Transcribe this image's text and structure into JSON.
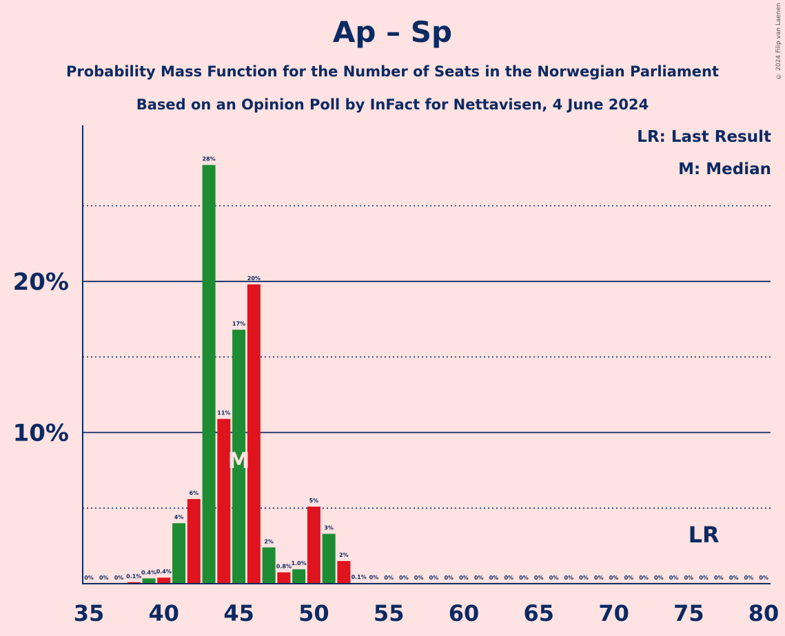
{
  "title": "Ap – Sp",
  "subtitle1": "Probability Mass Function for the Number of Seats in the Norwegian Parliament",
  "subtitle2": "Based on an Opinion Poll by InFact for Nettavisen, 4 June 2024",
  "copyright": "© 2024 Filip van Laenen",
  "legend": {
    "lr": "LR: Last Result",
    "m": "M: Median"
  },
  "colors": {
    "green": "#1E8C32",
    "red": "#E0141E",
    "text": "#0C2A62",
    "background": "#FFE2E2"
  },
  "chart_data": {
    "type": "bar",
    "xlim": [
      35,
      80
    ],
    "ylim": [
      0,
      30
    ],
    "x_ticks": [
      "35",
      "40",
      "45",
      "50",
      "55",
      "60",
      "65",
      "70",
      "75",
      "80"
    ],
    "y_ticks": [
      "10%",
      "20%"
    ],
    "grid": {
      "solid": [
        10,
        20,
        30
      ],
      "dotted": [
        5,
        15,
        25
      ]
    },
    "median": 45,
    "median_marker": "M",
    "last_result": 76,
    "last_result_marker": "LR",
    "seats": [
      35,
      36,
      37,
      38,
      39,
      40,
      41,
      42,
      43,
      44,
      45,
      46,
      47,
      48,
      49,
      50,
      51,
      52,
      53,
      54,
      55,
      56,
      57,
      58,
      59,
      60,
      61,
      62,
      63,
      64,
      65,
      66,
      67,
      68,
      69,
      70,
      71,
      72,
      73,
      74,
      75,
      76,
      77,
      78,
      79,
      80
    ],
    "values": [
      0,
      0,
      0,
      0.1,
      0.35,
      0.4,
      4.0,
      5.6,
      27.7,
      10.9,
      16.8,
      19.8,
      2.4,
      0.75,
      0.95,
      5.1,
      3.3,
      1.5,
      0.05,
      0.02,
      0,
      0,
      0,
      0,
      0,
      0,
      0,
      0,
      0,
      0,
      0,
      0,
      0,
      0,
      0,
      0,
      0,
      0,
      0,
      0,
      0,
      0,
      0,
      0,
      0,
      0
    ],
    "labels": [
      "0%",
      "0%",
      "0%",
      "0.1%",
      "0.4%",
      "0.4%",
      "4%",
      "6%",
      "28%",
      "11%",
      "17%",
      "20%",
      "2%",
      "0.8%",
      "1.0%",
      "5%",
      "3%",
      "2%",
      "0.1%",
      "0%",
      "0%",
      "0%",
      "0%",
      "0%",
      "0%",
      "0%",
      "0%",
      "0%",
      "0%",
      "0%",
      "0%",
      "0%",
      "0%",
      "0%",
      "0%",
      "0%",
      "0%",
      "0%",
      "0%",
      "0%",
      "0%",
      "0%",
      "0%",
      "0%",
      "0%",
      "0%"
    ],
    "bar_colors": [
      "green",
      "red",
      "green",
      "red",
      "green",
      "red",
      "green",
      "red",
      "green",
      "red",
      "green",
      "red",
      "green",
      "red",
      "green",
      "red",
      "green",
      "red",
      "green",
      "red",
      "green",
      "red",
      "green",
      "red",
      "green",
      "red",
      "green",
      "red",
      "green",
      "red",
      "green",
      "red",
      "green",
      "red",
      "green",
      "red",
      "green",
      "red",
      "green",
      "red",
      "green",
      "red",
      "green",
      "red",
      "green",
      "red"
    ]
  }
}
